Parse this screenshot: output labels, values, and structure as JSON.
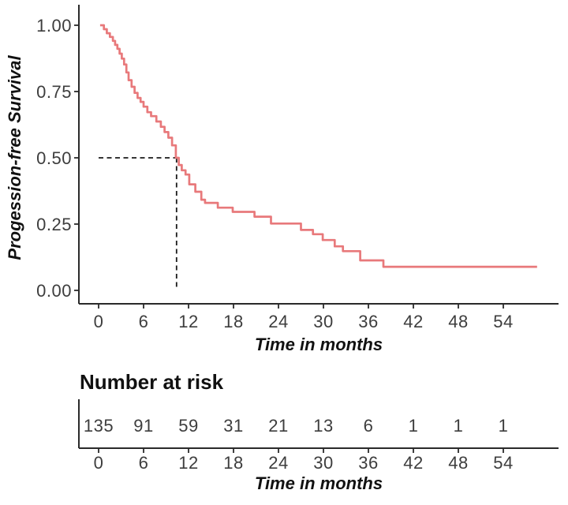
{
  "chart_data": {
    "type": "line",
    "chart_kind": "kaplan_meier_step",
    "title": "",
    "xlabel": "Time in months",
    "ylabel": "Progession-free Survival",
    "x_ticks": [
      0,
      6,
      12,
      18,
      24,
      30,
      36,
      42,
      48,
      54
    ],
    "y_tick_labels": [
      "1.00",
      "0.75",
      "0.50",
      "0.25",
      "0.00"
    ],
    "y_tick_values": [
      1.0,
      0.75,
      0.5,
      0.25,
      0.0
    ],
    "xlim": [
      0,
      58.5
    ],
    "ylim": [
      0.0,
      1.0
    ],
    "grid": false,
    "legend": "none",
    "line_color": "#e8797b",
    "axis_color": "#2a2a2a",
    "tick_label_color": "#3d3d3d",
    "median_guide": {
      "time_months": 10.4,
      "survival": 0.5,
      "style": "dashed"
    },
    "step_points": [
      [
        0.2,
        1.0
      ],
      [
        0.7,
        0.985
      ],
      [
        1.1,
        0.97
      ],
      [
        1.5,
        0.956
      ],
      [
        1.9,
        0.941
      ],
      [
        2.2,
        0.926
      ],
      [
        2.5,
        0.911
      ],
      [
        2.8,
        0.893
      ],
      [
        3.1,
        0.874
      ],
      [
        3.4,
        0.852
      ],
      [
        3.7,
        0.822
      ],
      [
        4.0,
        0.793
      ],
      [
        4.4,
        0.768
      ],
      [
        4.8,
        0.745
      ],
      [
        5.2,
        0.726
      ],
      [
        5.6,
        0.711
      ],
      [
        6.0,
        0.693
      ],
      [
        6.5,
        0.672
      ],
      [
        7.0,
        0.657
      ],
      [
        7.7,
        0.637
      ],
      [
        8.3,
        0.617
      ],
      [
        8.8,
        0.597
      ],
      [
        9.3,
        0.576
      ],
      [
        9.8,
        0.547
      ],
      [
        10.3,
        0.5
      ],
      [
        10.7,
        0.473
      ],
      [
        11.1,
        0.453
      ],
      [
        11.6,
        0.437
      ],
      [
        12.1,
        0.4
      ],
      [
        12.9,
        0.372
      ],
      [
        13.7,
        0.342
      ],
      [
        14.2,
        0.33
      ],
      [
        15.9,
        0.312
      ],
      [
        17.9,
        0.296
      ],
      [
        20.8,
        0.278
      ],
      [
        23.0,
        0.252
      ],
      [
        27.0,
        0.228
      ],
      [
        28.6,
        0.212
      ],
      [
        29.9,
        0.19
      ],
      [
        31.5,
        0.166
      ],
      [
        32.6,
        0.148
      ],
      [
        34.9,
        0.113
      ],
      [
        38.0,
        0.089
      ],
      [
        58.5,
        0.089
      ]
    ],
    "number_at_risk": {
      "title": "Number at risk",
      "xlabel": "Time in months",
      "times": [
        0,
        6,
        12,
        18,
        24,
        30,
        36,
        42,
        48,
        54
      ],
      "counts": [
        135,
        91,
        59,
        31,
        21,
        13,
        6,
        1,
        1,
        1
      ]
    }
  }
}
